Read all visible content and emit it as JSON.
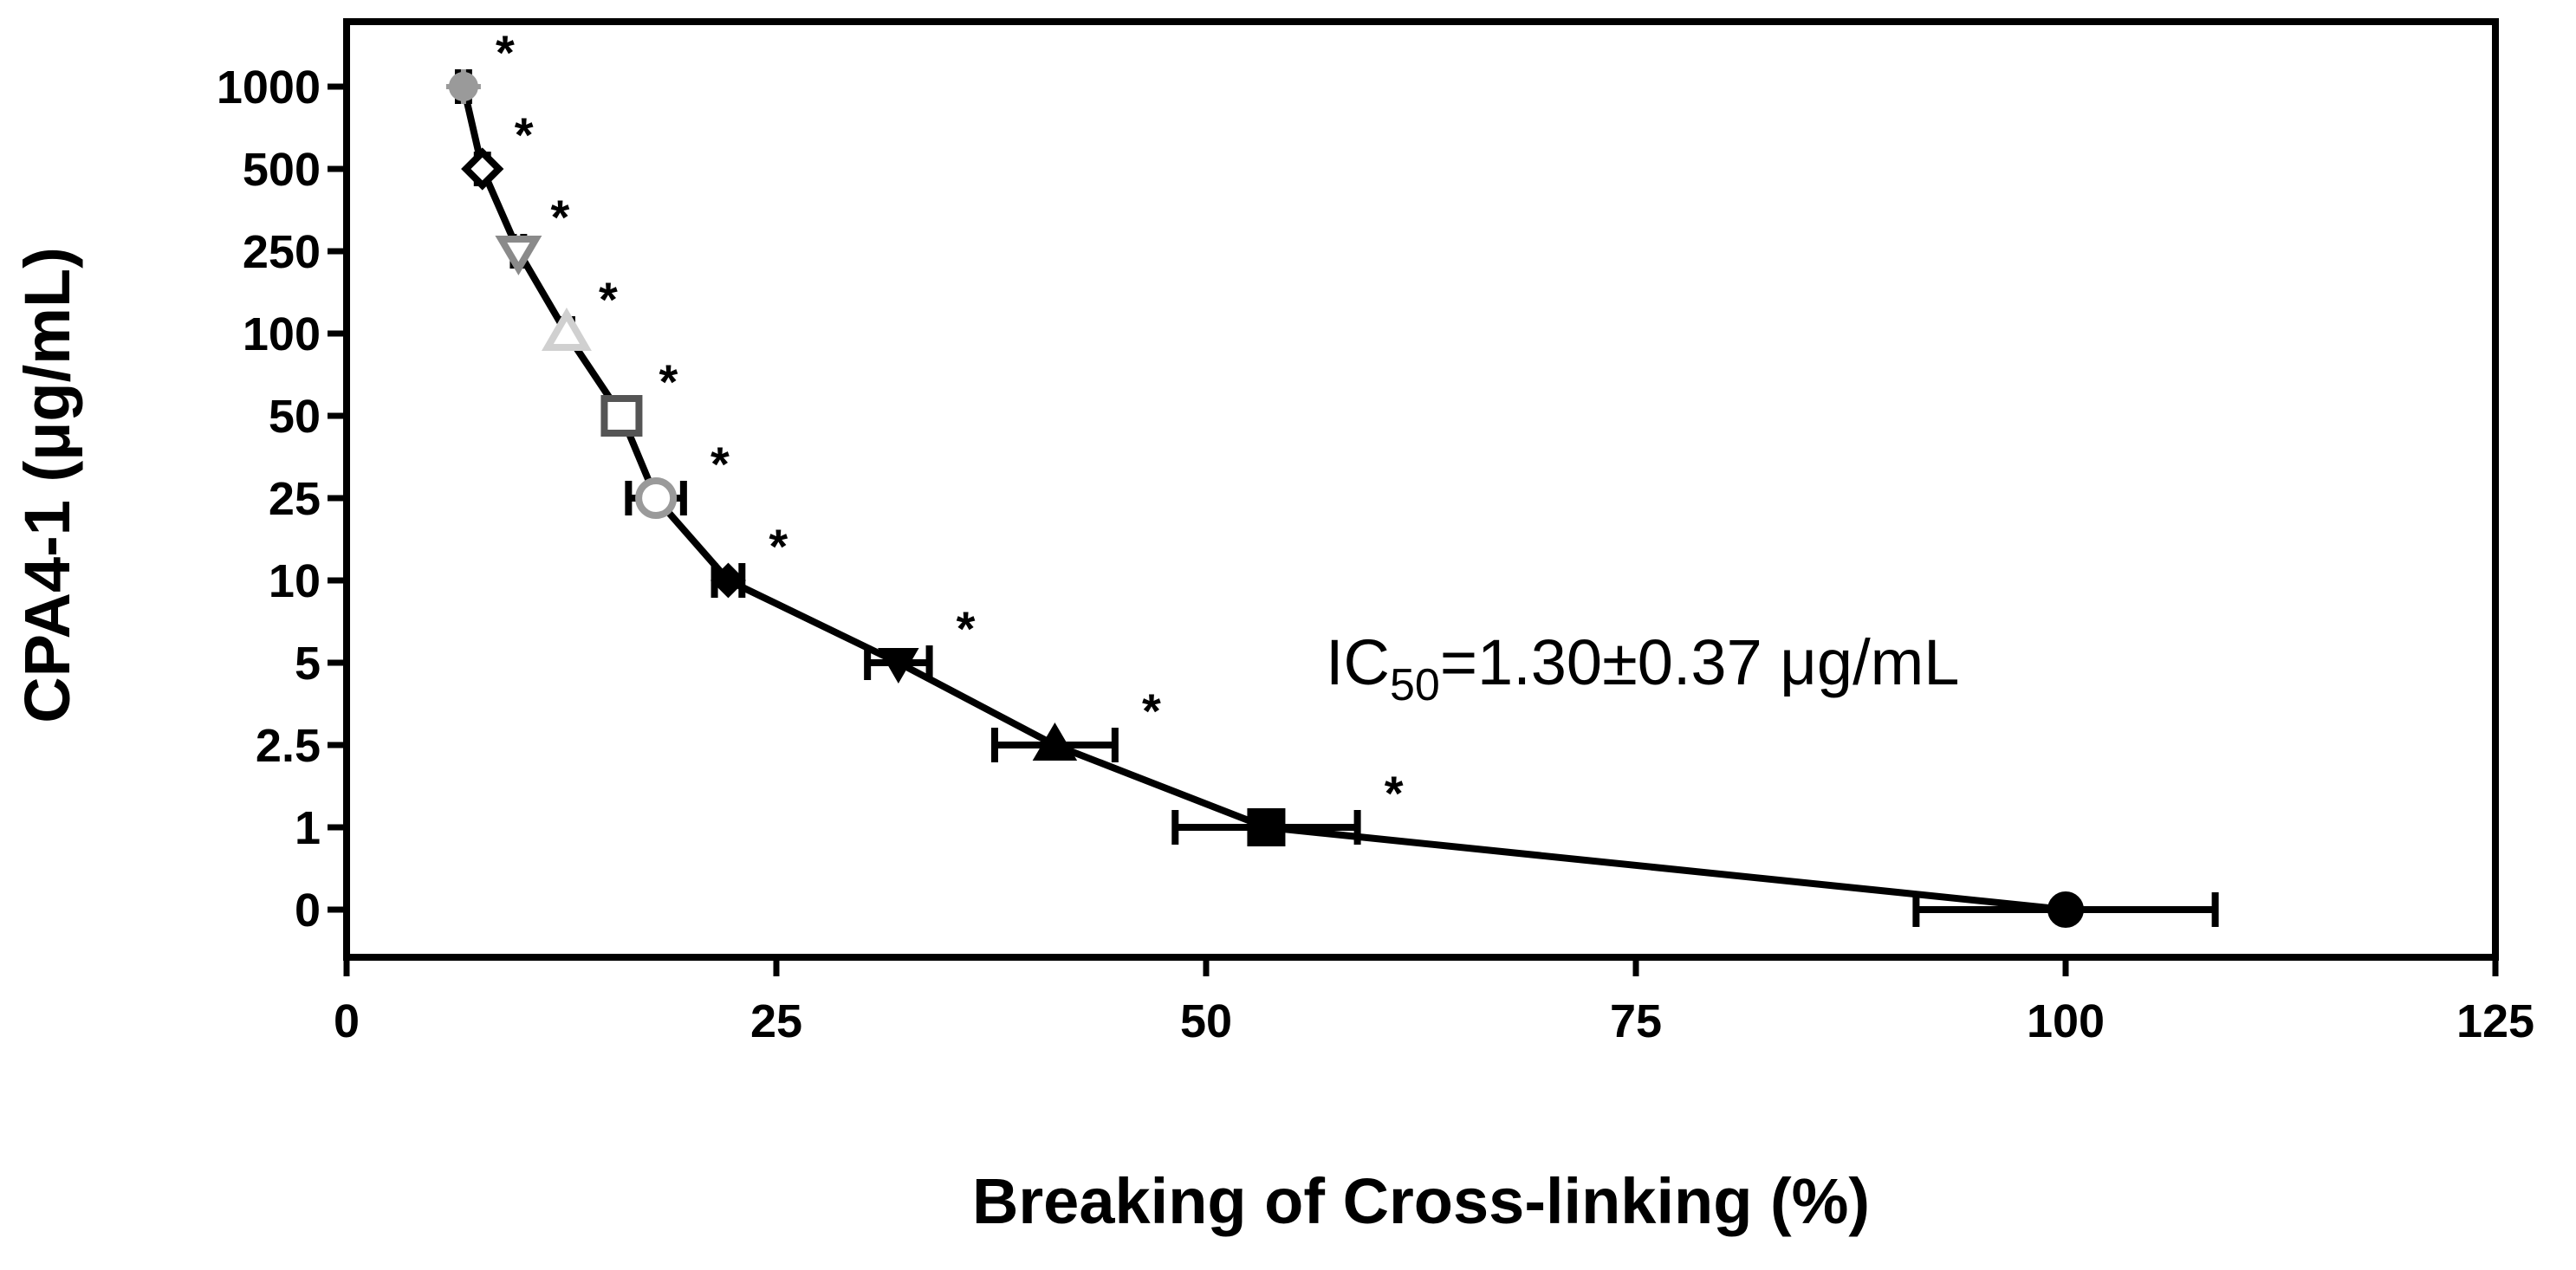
{
  "chart_data": {
    "type": "scatter",
    "xlabel": "Breaking of Cross-linking (%)",
    "ylabel": "CPA4-1 (μg/mL)",
    "xlim": [
      0,
      125
    ],
    "xticks": [
      "0",
      "25",
      "50",
      "75",
      "100",
      "125"
    ],
    "yticks": [
      "0",
      "1",
      "2.5",
      "5",
      "10",
      "25",
      "50",
      "100",
      "250",
      "500",
      "1000"
    ],
    "grid": false,
    "connected": true,
    "annotation": {
      "prefix": "IC",
      "subscript": "50",
      "rest": "=1.30±0.37 μg/mL"
    },
    "significance_marker": "*",
    "points": [
      {
        "y": "0",
        "x": 100.0,
        "err": 8.7,
        "marker": "circle",
        "color": "#000000",
        "star": false
      },
      {
        "y": "1",
        "x": 53.5,
        "err": 5.3,
        "marker": "square",
        "color": "#000000",
        "star": true
      },
      {
        "y": "2.5",
        "x": 41.2,
        "err": 3.5,
        "marker": "triangle-up",
        "color": "#000000",
        "star": true
      },
      {
        "y": "5",
        "x": 32.1,
        "err": 1.8,
        "marker": "triangle-down",
        "color": "#000000",
        "star": true
      },
      {
        "y": "10",
        "x": 22.2,
        "err": 0.8,
        "marker": "diamond",
        "color": "#000000",
        "star": true
      },
      {
        "y": "25",
        "x": 18.0,
        "err": 1.6,
        "marker": "circle-open",
        "color": "#9a9a9a",
        "star": true
      },
      {
        "y": "50",
        "x": 16.0,
        "err": 0.6,
        "marker": "square-open",
        "color": "#555555",
        "star": true
      },
      {
        "y": "100",
        "x": 12.8,
        "err": 0.3,
        "marker": "triangle-up-open",
        "color": "#d0d0d0",
        "star": true
      },
      {
        "y": "250",
        "x": 10.0,
        "err": 0.3,
        "marker": "triangle-down-open",
        "color": "#8a8a8a",
        "star": true
      },
      {
        "y": "500",
        "x": 7.9,
        "err": 0.3,
        "marker": "diamond-open",
        "color": "#000000",
        "star": true
      },
      {
        "y": "1000",
        "x": 6.8,
        "err": 0.3,
        "marker": "circle-star",
        "color": "#9a9a9a",
        "star": true
      }
    ]
  }
}
